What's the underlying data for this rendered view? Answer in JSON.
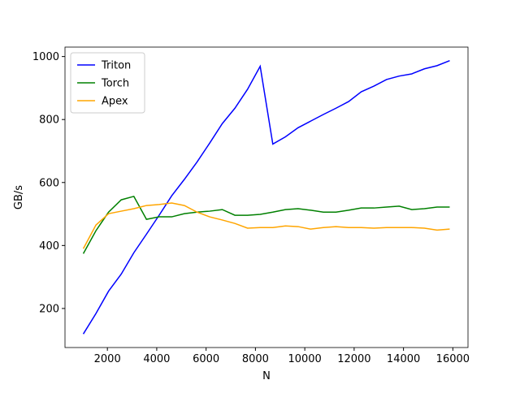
{
  "chart_data": {
    "type": "line",
    "xlabel": "N",
    "ylabel": "GB/s",
    "x": [
      1024,
      1536,
      2048,
      2560,
      3072,
      3584,
      4096,
      4608,
      5120,
      5632,
      6144,
      6656,
      7168,
      7680,
      8192,
      8704,
      9216,
      9728,
      10240,
      10752,
      11264,
      11776,
      12288,
      12800,
      13312,
      13824,
      14336,
      14848,
      15360,
      15872
    ],
    "series": [
      {
        "name": "Triton",
        "color": "blue",
        "values": [
          119,
          184,
          255,
          309,
          377,
          436,
          496,
          558,
          610,
          665,
          725,
          787,
          836,
          896,
          969,
          722,
          745,
          774,
          795,
          816,
          836,
          857,
          888,
          906,
          927,
          938,
          945,
          961,
          971,
          987
        ]
      },
      {
        "name": "Torch",
        "color": "green",
        "values": [
          374,
          447,
          506,
          545,
          556,
          483,
          491,
          491,
          501,
          506,
          509,
          514,
          496,
          496,
          499,
          506,
          514,
          517,
          512,
          506,
          506,
          512,
          519,
          519,
          522,
          525,
          514,
          517,
          522,
          522
        ]
      },
      {
        "name": "Apex",
        "color": "orange",
        "values": [
          390,
          465,
          501,
          509,
          517,
          527,
          530,
          535,
          527,
          506,
          491,
          481,
          470,
          455,
          457,
          457,
          462,
          460,
          452,
          457,
          460,
          457,
          457,
          455,
          457,
          457,
          457,
          455,
          449,
          452
        ]
      }
    ],
    "xlim": [
      282,
      16614
    ],
    "ylim": [
      76,
      1030
    ],
    "xticks": [
      2000,
      4000,
      6000,
      8000,
      10000,
      12000,
      14000,
      16000
    ],
    "yticks": [
      200,
      400,
      600,
      800,
      1000
    ],
    "legend": "upper left"
  }
}
